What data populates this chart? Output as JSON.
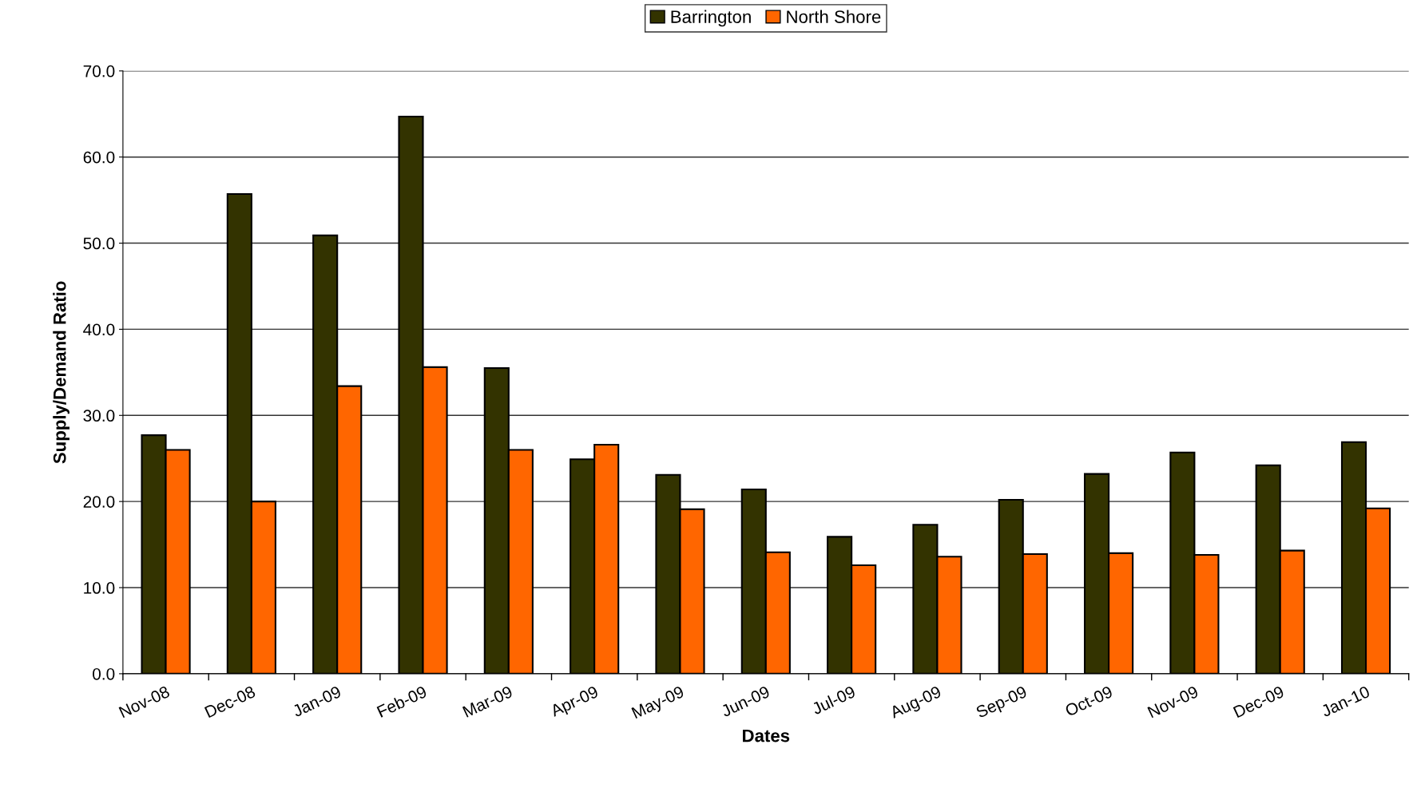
{
  "chart_data": {
    "type": "bar",
    "xlabel": "Dates",
    "ylabel": "Supply/Demand Ratio",
    "categories": [
      "Nov-08",
      "Dec-08",
      "Jan-09",
      "Feb-09",
      "Mar-09",
      "Apr-09",
      "May-09",
      "Jun-09",
      "Jul-09",
      "Aug-09",
      "Sep-09",
      "Oct-09",
      "Nov-09",
      "Dec-09",
      "Jan-10"
    ],
    "series": [
      {
        "name": "Barrington",
        "color": "#333300",
        "values": [
          27.7,
          55.7,
          50.9,
          64.7,
          35.5,
          24.9,
          23.1,
          21.4,
          15.9,
          17.3,
          20.2,
          23.2,
          25.7,
          24.2,
          26.9
        ]
      },
      {
        "name": "North Shore",
        "color": "#ff6600",
        "values": [
          26.0,
          20.0,
          33.4,
          35.6,
          26.0,
          26.6,
          19.1,
          14.1,
          12.6,
          13.6,
          13.9,
          14.0,
          13.8,
          14.3,
          19.2
        ]
      }
    ],
    "ylim": [
      0,
      70
    ],
    "yticks": [
      {
        "value": 0,
        "label": "0.0"
      },
      {
        "value": 10,
        "label": "10.0"
      },
      {
        "value": 20,
        "label": "20.0"
      },
      {
        "value": 30,
        "label": "30.0"
      },
      {
        "value": 40,
        "label": "40.0"
      },
      {
        "value": 50,
        "label": "50.0"
      },
      {
        "value": 60,
        "label": "60.0"
      },
      {
        "value": 70,
        "label": "70.0"
      }
    ],
    "grid": "y",
    "legend": "top"
  }
}
